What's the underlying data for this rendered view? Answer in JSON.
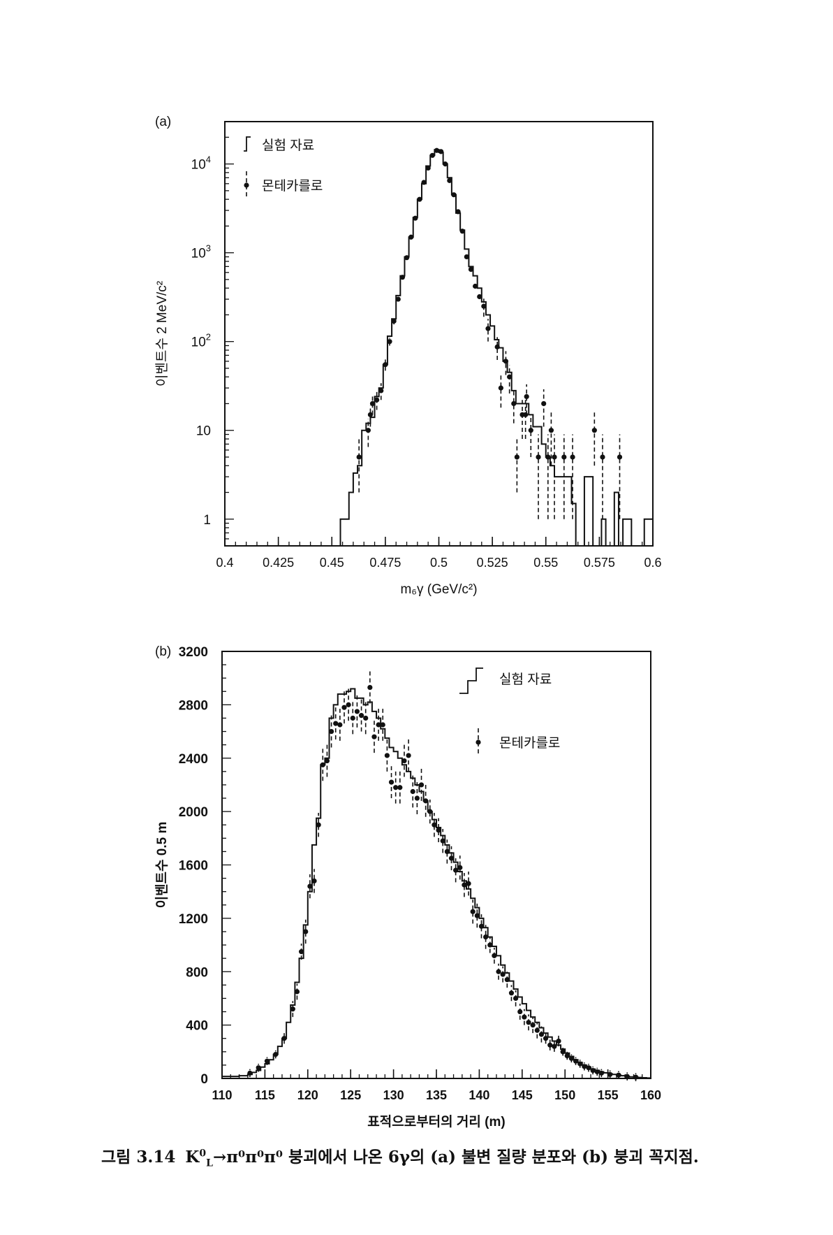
{
  "chart_data": [
    {
      "type": "histogram",
      "panel_label": "(a)",
      "xlabel": "m₆γ (GeV/c²)",
      "ylabel": "이벤트수 2 MeV/c²",
      "yscale": "log",
      "xlim": [
        0.4,
        0.6
      ],
      "ylim": [
        0.5,
        30000
      ],
      "xticks": [
        "0.4",
        "0.425",
        "0.45",
        "0.475",
        "0.5",
        "0.525",
        "0.55",
        "0.575",
        "0.6"
      ],
      "xtick_values": [
        0.4,
        0.425,
        0.45,
        0.475,
        0.5,
        0.525,
        0.55,
        0.575,
        0.6
      ],
      "yticks": [
        {
          "base": "1",
          "exp": ""
        },
        {
          "base": "10",
          "exp": ""
        },
        {
          "base": "10",
          "exp": "2"
        },
        {
          "base": "10",
          "exp": "3"
        },
        {
          "base": "10",
          "exp": "4"
        }
      ],
      "ytick_values": [
        1,
        10,
        100,
        1000,
        10000
      ],
      "legend": {
        "placement": "top-left",
        "data": "실험 자료",
        "mc": "몬테카를로"
      },
      "data_hist": {
        "bin_start": 0.454,
        "bin_width": 0.002,
        "values": [
          1,
          1,
          2,
          3.3,
          4,
          10,
          12,
          14,
          24,
          30,
          55,
          115,
          180,
          330,
          550,
          900,
          1500,
          2500,
          4000,
          6000,
          9500,
          12500,
          14500,
          13500,
          10000,
          7000,
          4500,
          2800,
          1800,
          1100,
          700,
          550,
          400,
          280,
          200,
          150,
          105,
          85,
          60,
          45,
          28,
          20,
          20,
          20,
          15,
          11,
          11,
          7,
          5,
          4,
          3,
          3,
          3,
          3,
          1.5,
          0,
          0,
          3,
          3,
          0,
          0,
          1,
          0,
          0,
          2,
          0,
          1,
          1,
          0,
          0,
          0,
          1,
          1
        ]
      },
      "mc_points": [
        [
          0.4627,
          5,
          3
        ],
        [
          0.467,
          10,
          3.5
        ],
        [
          0.468,
          15,
          4
        ],
        [
          0.469,
          20,
          5
        ],
        [
          0.471,
          22,
          5
        ],
        [
          0.473,
          28,
          6
        ],
        [
          0.475,
          55,
          8
        ],
        [
          0.477,
          100,
          10
        ],
        [
          0.479,
          170,
          14
        ],
        [
          0.481,
          300,
          18
        ],
        [
          0.483,
          530,
          24
        ],
        [
          0.485,
          880,
          30
        ],
        [
          0.487,
          1500,
          40
        ],
        [
          0.489,
          2450,
          50
        ],
        [
          0.491,
          4000,
          65
        ],
        [
          0.493,
          6200,
          80
        ],
        [
          0.495,
          9000,
          95
        ],
        [
          0.497,
          12500,
          110
        ],
        [
          0.499,
          14200,
          120
        ],
        [
          0.501,
          13800,
          118
        ],
        [
          0.503,
          10000,
          100
        ],
        [
          0.505,
          6500,
          80
        ],
        [
          0.507,
          4500,
          67
        ],
        [
          0.509,
          2900,
          54
        ],
        [
          0.511,
          1750,
          42
        ],
        [
          0.513,
          900,
          30
        ],
        [
          0.515,
          650,
          26
        ],
        [
          0.517,
          420,
          20
        ],
        [
          0.519,
          320,
          18
        ],
        [
          0.521,
          250,
          60
        ],
        [
          0.523,
          140,
          40
        ],
        [
          0.5273,
          87,
          25
        ],
        [
          0.529,
          30,
          12
        ],
        [
          0.5313,
          60,
          18
        ],
        [
          0.533,
          40,
          14
        ],
        [
          0.535,
          20,
          8
        ],
        [
          0.5365,
          5,
          3
        ],
        [
          0.539,
          15,
          7
        ],
        [
          0.5405,
          15,
          7
        ],
        [
          0.541,
          24,
          9
        ],
        [
          0.543,
          10,
          5
        ],
        [
          0.5465,
          5,
          4
        ],
        [
          0.549,
          20,
          9
        ],
        [
          0.551,
          5,
          4
        ],
        [
          0.5525,
          10,
          6
        ],
        [
          0.554,
          5,
          4
        ],
        [
          0.5585,
          5,
          4
        ],
        [
          0.5625,
          5,
          4
        ],
        [
          0.5727,
          10,
          6
        ],
        [
          0.5765,
          5,
          4
        ],
        [
          0.5845,
          5,
          4
        ]
      ]
    },
    {
      "type": "histogram",
      "panel_label": "(b)",
      "xlabel": "표적으로부터의 거리 (m)",
      "ylabel": "이벤트수 0.5 m",
      "yscale": "linear",
      "xlim": [
        110,
        160
      ],
      "ylim": [
        0,
        3200
      ],
      "xticks": [
        "110",
        "115",
        "120",
        "125",
        "130",
        "135",
        "140",
        "145",
        "150",
        "155",
        "160"
      ],
      "xtick_values": [
        110,
        115,
        120,
        125,
        130,
        135,
        140,
        145,
        150,
        155,
        160
      ],
      "yticks": [
        {
          "base": "0",
          "exp": ""
        },
        {
          "base": "400",
          "exp": ""
        },
        {
          "base": "800",
          "exp": ""
        },
        {
          "base": "1200",
          "exp": ""
        },
        {
          "base": "1600",
          "exp": ""
        },
        {
          "base": "2000",
          "exp": ""
        },
        {
          "base": "2400",
          "exp": ""
        },
        {
          "base": "2800",
          "exp": ""
        },
        {
          "base": "3200",
          "exp": ""
        }
      ],
      "ytick_values": [
        0,
        400,
        800,
        1200,
        1600,
        2000,
        2400,
        2800,
        3200
      ],
      "legend": {
        "placement": "top-right",
        "data": "실험 자료",
        "mc": "몬테카를로"
      },
      "data_hist": {
        "bin_start": 110,
        "bin_width": 0.5,
        "values": [
          15,
          15,
          15,
          15,
          20,
          20,
          30,
          45,
          60,
          85,
          110,
          140,
          180,
          240,
          300,
          420,
          550,
          720,
          900,
          1150,
          1400,
          1750,
          1950,
          2350,
          2400,
          2700,
          2800,
          2880,
          2880,
          2900,
          2920,
          2850,
          2850,
          2800,
          2820,
          2750,
          2700,
          2620,
          2550,
          2480,
          2450,
          2400,
          2350,
          2300,
          2250,
          2200,
          2150,
          2080,
          2000,
          1940,
          1880,
          1820,
          1750,
          1690,
          1620,
          1550,
          1480,
          1420,
          1350,
          1280,
          1200,
          1130,
          1060,
          990,
          920,
          850,
          790,
          730,
          670,
          610,
          560,
          510,
          460,
          420,
          380,
          340,
          310,
          280,
          250,
          220,
          190,
          165,
          140,
          120,
          100,
          85,
          70,
          60,
          50,
          42,
          35,
          30,
          25,
          20,
          15,
          12,
          10,
          7,
          5,
          3
        ]
      },
      "mc_points": [
        [
          113.25,
          40,
          30
        ],
        [
          114.25,
          80,
          30
        ],
        [
          115.25,
          130,
          30
        ],
        [
          116.25,
          180,
          30
        ],
        [
          117.25,
          300,
          40
        ],
        [
          118.25,
          520,
          60
        ],
        [
          118.75,
          650,
          60
        ],
        [
          119.25,
          950,
          60
        ],
        [
          119.75,
          1100,
          90
        ],
        [
          120.25,
          1440,
          90
        ],
        [
          120.75,
          1480,
          90
        ],
        [
          121.25,
          1900,
          90
        ],
        [
          121.75,
          2350,
          120
        ],
        [
          122.25,
          2380,
          120
        ],
        [
          122.75,
          2600,
          120
        ],
        [
          123.25,
          2660,
          120
        ],
        [
          123.75,
          2650,
          120
        ],
        [
          124.25,
          2780,
          120
        ],
        [
          124.75,
          2800,
          120
        ],
        [
          125.25,
          2700,
          120
        ],
        [
          125.75,
          2750,
          120
        ],
        [
          126.25,
          2720,
          120
        ],
        [
          126.75,
          2700,
          120
        ],
        [
          127.25,
          2930,
          120
        ],
        [
          127.75,
          2560,
          120
        ],
        [
          128.25,
          2650,
          120
        ],
        [
          128.75,
          2650,
          120
        ],
        [
          129.25,
          2420,
          120
        ],
        [
          129.75,
          2220,
          120
        ],
        [
          130.25,
          2180,
          120
        ],
        [
          130.75,
          2180,
          120
        ],
        [
          131.25,
          2380,
          120
        ],
        [
          131.75,
          2420,
          120
        ],
        [
          132.25,
          2150,
          120
        ],
        [
          132.75,
          2100,
          120
        ],
        [
          133.25,
          2200,
          120
        ],
        [
          133.75,
          2080,
          120
        ],
        [
          134.25,
          2000,
          90
        ],
        [
          134.75,
          1900,
          90
        ],
        [
          135.25,
          1860,
          90
        ],
        [
          135.75,
          1780,
          90
        ],
        [
          136.25,
          1700,
          90
        ],
        [
          136.75,
          1650,
          90
        ],
        [
          137.25,
          1560,
          90
        ],
        [
          137.75,
          1580,
          90
        ],
        [
          138.25,
          1450,
          90
        ],
        [
          138.75,
          1460,
          90
        ],
        [
          139.25,
          1250,
          90
        ],
        [
          139.75,
          1220,
          90
        ],
        [
          140.25,
          1140,
          90
        ],
        [
          140.75,
          1060,
          90
        ],
        [
          141.25,
          1000,
          60
        ],
        [
          141.75,
          920,
          60
        ],
        [
          142.25,
          800,
          60
        ],
        [
          142.75,
          780,
          60
        ],
        [
          143.25,
          740,
          60
        ],
        [
          143.75,
          640,
          60
        ],
        [
          144.25,
          600,
          60
        ],
        [
          144.75,
          500,
          60
        ],
        [
          145.25,
          460,
          60
        ],
        [
          145.75,
          420,
          60
        ],
        [
          146.25,
          400,
          60
        ],
        [
          146.75,
          360,
          60
        ],
        [
          147.25,
          330,
          60
        ],
        [
          147.75,
          300,
          40
        ],
        [
          148.25,
          250,
          40
        ],
        [
          148.75,
          240,
          40
        ],
        [
          149.25,
          280,
          40
        ],
        [
          149.75,
          200,
          30
        ],
        [
          150.25,
          170,
          30
        ],
        [
          150.75,
          150,
          30
        ],
        [
          151.25,
          130,
          30
        ],
        [
          151.75,
          110,
          30
        ],
        [
          152.25,
          90,
          30
        ],
        [
          152.75,
          80,
          30
        ],
        [
          153.25,
          60,
          30
        ],
        [
          153.75,
          50,
          30
        ],
        [
          154.25,
          40,
          30
        ],
        [
          155.25,
          30,
          30
        ],
        [
          156.25,
          25,
          30
        ],
        [
          157.25,
          15,
          30
        ],
        [
          158.25,
          10,
          30
        ]
      ]
    }
  ],
  "caption": {
    "prefix": "그림 3.14",
    "k": "K",
    "k_sup": "0",
    "k_sub": "L",
    "rest": "→π⁰π⁰π⁰ 붕괴에서 나온 6γ의 (a) 불변 질량 분포와 (b) 붕괴 꼭지점."
  }
}
